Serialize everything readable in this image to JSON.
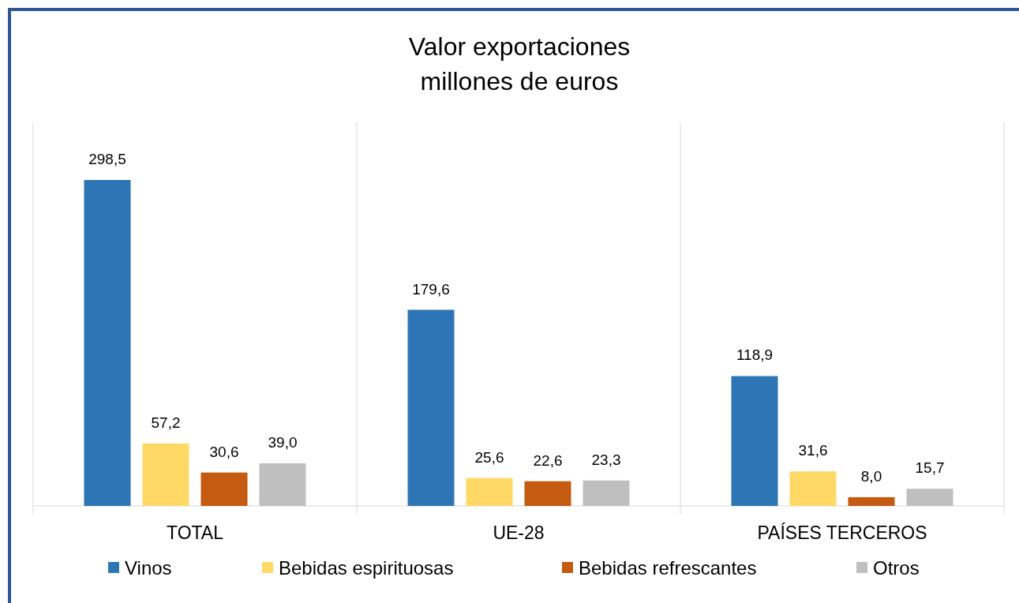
{
  "chart_data": {
    "type": "bar",
    "title": "Valor exportaciones\nmillones de euros",
    "categories": [
      "TOTAL",
      "UE-28",
      "PAÍSES TERCEROS"
    ],
    "series": [
      {
        "name": "Vinos",
        "color": "#2e75b6",
        "values": [
          298.5,
          179.6,
          118.9
        ],
        "value_labels": [
          "298,5",
          "179,6",
          "118,9"
        ]
      },
      {
        "name": "Bebidas espirituosas",
        "color": "#ffd966",
        "values": [
          57.2,
          25.6,
          31.6
        ],
        "value_labels": [
          "57,2",
          "25,6",
          "31,6"
        ]
      },
      {
        "name": "Bebidas refrescantes",
        "color": "#c55a11",
        "values": [
          30.6,
          22.6,
          8.0
        ],
        "value_labels": [
          "30,6",
          "22,6",
          "8,0"
        ]
      },
      {
        "name": "Otros",
        "color": "#bfbfbf",
        "values": [
          39.0,
          23.3,
          15.7
        ],
        "value_labels": [
          "39,0",
          "23,3",
          "15,7"
        ]
      }
    ],
    "grid": "x",
    "legend": "bottom",
    "tick_labels": "x"
  }
}
